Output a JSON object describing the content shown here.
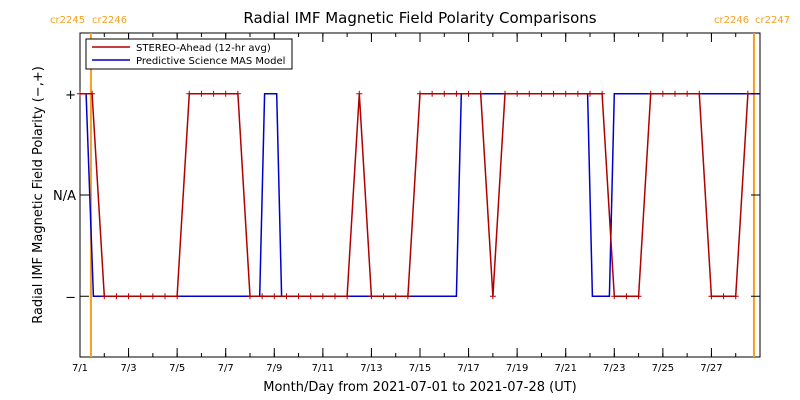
{
  "chart_data": {
    "type": "line",
    "title": "Radial IMF Magnetic Field Polarity Comparisons",
    "xlabel": "Month/Day from 2021-07-01 to 2021-07-28 (UT)",
    "ylabel": "Radial IMF Magnetic Field Polarity (−,+)",
    "x_unit": "day of July 2021",
    "xlim": [
      1.0,
      29.0
    ],
    "ylim": [
      -1.6,
      1.6
    ],
    "x_ticks": [
      1,
      3,
      5,
      7,
      9,
      11,
      13,
      15,
      17,
      19,
      21,
      23,
      25,
      27
    ],
    "x_tick_labels": [
      "7/1",
      "7/3",
      "7/5",
      "7/7",
      "7/9",
      "7/11",
      "7/13",
      "7/15",
      "7/17",
      "7/19",
      "7/21",
      "7/23",
      "7/25",
      "7/27"
    ],
    "y_ticks": [
      1,
      0,
      -1
    ],
    "y_tick_labels": [
      "+",
      "N/A",
      "−"
    ],
    "grid": false,
    "legend_position": "top-left",
    "carrington_markers": [
      {
        "x": 1.45,
        "label_left": "cr2245",
        "label_right": "cr2246"
      },
      {
        "x": 28.75,
        "label_left": "cr2246",
        "label_right": "cr2247"
      }
    ],
    "series": [
      {
        "name": "STEREO-Ahead (12-hr avg)",
        "color": "#b00000",
        "marker": "+",
        "x": [
          1.0,
          1.5,
          2.0,
          2.5,
          3.0,
          3.5,
          4.0,
          4.5,
          5.0,
          5.5,
          6.0,
          6.5,
          7.0,
          7.5,
          8.0,
          8.5,
          9.0,
          9.5,
          10.0,
          10.5,
          11.0,
          11.5,
          12.0,
          12.5,
          13.0,
          13.5,
          14.0,
          14.5,
          15.0,
          15.5,
          16.0,
          16.5,
          17.0,
          17.5,
          18.0,
          18.5,
          19.0,
          19.5,
          20.0,
          20.5,
          21.0,
          21.5,
          22.0,
          22.5,
          23.0,
          23.5,
          24.0,
          24.5,
          25.0,
          25.5,
          26.0,
          26.5,
          27.0,
          27.5,
          28.0,
          28.5
        ],
        "values": [
          1,
          1,
          -1,
          -1,
          -1,
          -1,
          -1,
          -1,
          -1,
          1,
          1,
          1,
          1,
          1,
          -1,
          -1,
          -1,
          -1,
          -1,
          -1,
          -1,
          -1,
          -1,
          1,
          -1,
          -1,
          -1,
          -1,
          1,
          1,
          1,
          1,
          1,
          1,
          -1,
          1,
          1,
          1,
          1,
          1,
          1,
          1,
          1,
          1,
          -1,
          -1,
          -1,
          1,
          1,
          1,
          1,
          1,
          -1,
          -1,
          -1,
          1
        ]
      },
      {
        "name": "Predictive Science MAS Model",
        "color": "#0000cc",
        "marker": "none",
        "x": [
          1.0,
          1.25,
          1.55,
          8.4,
          8.6,
          9.1,
          9.3,
          16.5,
          16.7,
          21.9,
          22.1,
          22.8,
          23.0,
          28.5,
          29.0
        ],
        "values": [
          1,
          1,
          -1,
          -1,
          1,
          1,
          -1,
          -1,
          1,
          1,
          -1,
          -1,
          1,
          1,
          1
        ]
      }
    ]
  }
}
